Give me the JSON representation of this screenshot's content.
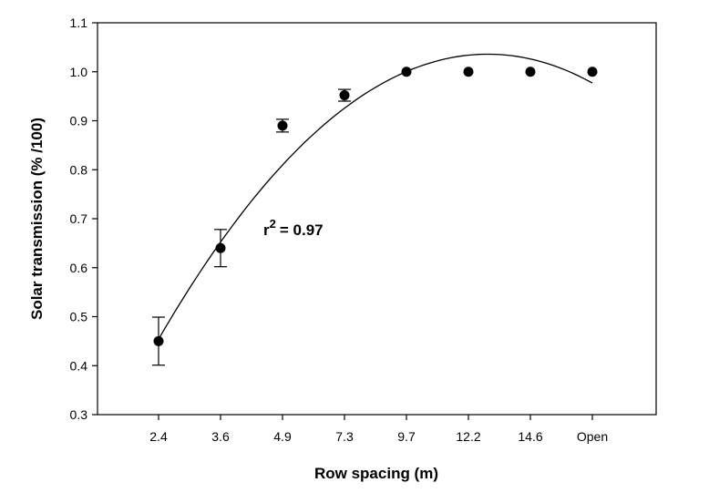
{
  "chart_data": {
    "type": "scatter",
    "title": "",
    "xlabel": "Row spacing (m)",
    "ylabel": "Solar transmission (% /100)",
    "categories": [
      "2.4",
      "3.6",
      "4.9",
      "7.3",
      "9.7",
      "12.2",
      "14.6",
      "Open"
    ],
    "ylim": [
      0.3,
      1.1
    ],
    "yticks": [
      "0.3",
      "0.4",
      "0.5",
      "0.6",
      "0.7",
      "0.8",
      "0.9",
      "1.0",
      "1.1"
    ],
    "grid": false,
    "series": [
      {
        "name": "Solar transmission",
        "values": [
          0.45,
          0.64,
          0.89,
          0.952,
          1.0,
          1.0,
          1.0,
          1.0
        ],
        "error": [
          0.049,
          0.038,
          0.013,
          0.012,
          0,
          0,
          0,
          0
        ]
      }
    ],
    "fit": {
      "type": "quadratic",
      "label_prefix": "r",
      "label_exponent": "2",
      "label_value": "= 0.97",
      "points": [
        [
          1,
          0.46
        ],
        [
          2,
          0.65
        ],
        [
          3,
          0.8
        ],
        [
          4,
          0.925
        ],
        [
          5,
          1.0
        ],
        [
          6,
          1.038
        ],
        [
          6.5,
          1.04
        ],
        [
          7,
          1.033
        ],
        [
          8,
          0.968
        ]
      ]
    }
  }
}
